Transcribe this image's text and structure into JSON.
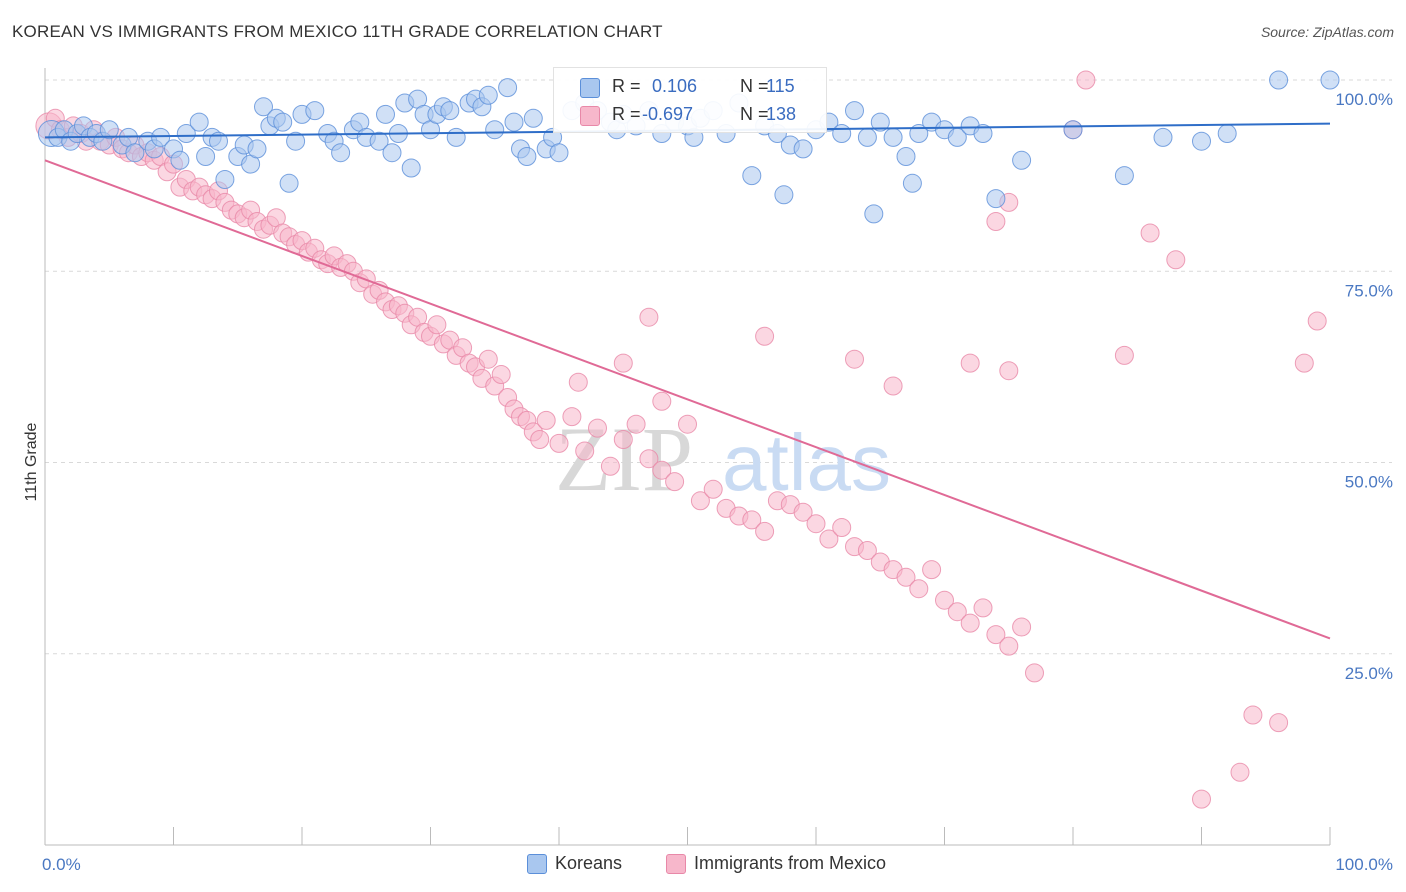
{
  "title": "KOREAN VS IMMIGRANTS FROM MEXICO 11TH GRADE CORRELATION CHART",
  "source": "Source: ZipAtlas.com",
  "watermark": {
    "zip": "ZIP",
    "atlas": "atlas"
  },
  "colors": {
    "koreans_fill": "#a9c7ef",
    "koreans_stroke": "#5b8fd9",
    "koreans_line": "#2f6ec8",
    "mexico_fill": "#f7b7cb",
    "mexico_stroke": "#e888a8",
    "mexico_line": "#e06a96",
    "tick_text": "#4a78c2",
    "grid": "#d9d9d9"
  },
  "legend_top": {
    "koreans": {
      "r_label": "R =",
      "r_value": "0.106",
      "n_label": "N =",
      "n_value": "115"
    },
    "mexico": {
      "r_label": "R =",
      "r_value": "-0.697",
      "n_label": "N =",
      "n_value": "138"
    }
  },
  "legend_bottom": {
    "koreans": "Koreans",
    "mexico": "Immigrants from Mexico"
  },
  "chart_data": {
    "type": "scatter",
    "ylabel": "11th Grade",
    "xlabel": "",
    "xlim": [
      0,
      100
    ],
    "ylim": [
      0,
      100
    ],
    "x_tick_labels": [
      "0.0%",
      "100.0%"
    ],
    "y_tick_labels": [
      "100.0%",
      "75.0%",
      "50.0%",
      "25.0%"
    ],
    "y_tick_values": [
      100,
      75,
      50,
      25
    ],
    "grid": "horizontal dashed",
    "legend": "top-center",
    "series": [
      {
        "name": "Koreans",
        "trend": {
          "x0": 0,
          "y0": 92.5,
          "x1": 100,
          "y1": 94.3
        },
        "points": [
          [
            0.5,
            93
          ],
          [
            1,
            92.5
          ],
          [
            1.5,
            93.5
          ],
          [
            2,
            92
          ],
          [
            2.5,
            93
          ],
          [
            3,
            94
          ],
          [
            3.5,
            92.5
          ],
          [
            4,
            93
          ],
          [
            4.5,
            92
          ],
          [
            5,
            93.5
          ],
          [
            6,
            91.5
          ],
          [
            6.5,
            92.5
          ],
          [
            7,
            90.5
          ],
          [
            8,
            92
          ],
          [
            8.5,
            91
          ],
          [
            9,
            92.5
          ],
          [
            10,
            91
          ],
          [
            10.5,
            89.5
          ],
          [
            11,
            93
          ],
          [
            12,
            94.5
          ],
          [
            12.5,
            90
          ],
          [
            13,
            92.5
          ],
          [
            13.5,
            92
          ],
          [
            14,
            87
          ],
          [
            15,
            90
          ],
          [
            15.5,
            91.5
          ],
          [
            16,
            89
          ],
          [
            16.5,
            91
          ],
          [
            17,
            96.5
          ],
          [
            17.5,
            94
          ],
          [
            18,
            95
          ],
          [
            18.5,
            94.5
          ],
          [
            19,
            86.5
          ],
          [
            19.5,
            92
          ],
          [
            20,
            95.5
          ],
          [
            21,
            96
          ],
          [
            22,
            93
          ],
          [
            22.5,
            92
          ],
          [
            23,
            90.5
          ],
          [
            24,
            93.5
          ],
          [
            24.5,
            94.5
          ],
          [
            25,
            92.5
          ],
          [
            26,
            92
          ],
          [
            26.5,
            95.5
          ],
          [
            27,
            90.5
          ],
          [
            27.5,
            93
          ],
          [
            28,
            97
          ],
          [
            28.5,
            88.5
          ],
          [
            29,
            97.5
          ],
          [
            29.5,
            95.5
          ],
          [
            30,
            93.5
          ],
          [
            30.5,
            95.5
          ],
          [
            31,
            96.5
          ],
          [
            31.5,
            96
          ],
          [
            32,
            92.5
          ],
          [
            33,
            97
          ],
          [
            33.5,
            97.5
          ],
          [
            34,
            96.5
          ],
          [
            34.5,
            98
          ],
          [
            35,
            93.5
          ],
          [
            36,
            99
          ],
          [
            36.5,
            94.5
          ],
          [
            37,
            91
          ],
          [
            37.5,
            90
          ],
          [
            38,
            95
          ],
          [
            39,
            91
          ],
          [
            39.5,
            92.5
          ],
          [
            40,
            90.5
          ],
          [
            41,
            96
          ],
          [
            42,
            97
          ],
          [
            43,
            96
          ],
          [
            44,
            94.5
          ],
          [
            44.5,
            93.5
          ],
          [
            45,
            95.5
          ],
          [
            46,
            94
          ],
          [
            47,
            96
          ],
          [
            48,
            93
          ],
          [
            49,
            94.5
          ],
          [
            50,
            94
          ],
          [
            50.5,
            92.5
          ],
          [
            51,
            95
          ],
          [
            52,
            96
          ],
          [
            53,
            93
          ],
          [
            54,
            97
          ],
          [
            55,
            87.5
          ],
          [
            56,
            94
          ],
          [
            57,
            93
          ],
          [
            57.5,
            85
          ],
          [
            58,
            91.5
          ],
          [
            59,
            91
          ],
          [
            60,
            93.5
          ],
          [
            61,
            94.5
          ],
          [
            62,
            93
          ],
          [
            63,
            96
          ],
          [
            64,
            92.5
          ],
          [
            64.5,
            82.5
          ],
          [
            65,
            94.5
          ],
          [
            66,
            92.5
          ],
          [
            67,
            90
          ],
          [
            67.5,
            86.5
          ],
          [
            68,
            93
          ],
          [
            69,
            94.5
          ],
          [
            70,
            93.5
          ],
          [
            71,
            92.5
          ],
          [
            72,
            94
          ],
          [
            73,
            93
          ],
          [
            74,
            84.5
          ],
          [
            76,
            89.5
          ],
          [
            80,
            93.5
          ],
          [
            84,
            87.5
          ],
          [
            87,
            92.5
          ],
          [
            90,
            92
          ],
          [
            92,
            93
          ],
          [
            96,
            100
          ],
          [
            100,
            100
          ]
        ]
      },
      {
        "name": "Immigrants from Mexico",
        "trend": {
          "x0": 0,
          "y0": 89.5,
          "x1": 100,
          "y1": 27
        },
        "points": [
          [
            0.3,
            94
          ],
          [
            0.8,
            95
          ],
          [
            1.2,
            93.5
          ],
          [
            1.8,
            92.5
          ],
          [
            2.2,
            94
          ],
          [
            2.8,
            93
          ],
          [
            3.2,
            92
          ],
          [
            3.8,
            93.5
          ],
          [
            4.3,
            92
          ],
          [
            5,
            91.5
          ],
          [
            5.5,
            92.5
          ],
          [
            6,
            91
          ],
          [
            6.5,
            90.5
          ],
          [
            7,
            91.5
          ],
          [
            7.5,
            90
          ],
          [
            8,
            90.5
          ],
          [
            8.5,
            89.5
          ],
          [
            9,
            90
          ],
          [
            9.5,
            88
          ],
          [
            10,
            89
          ],
          [
            10.5,
            86
          ],
          [
            11,
            87
          ],
          [
            11.5,
            85.5
          ],
          [
            12,
            86
          ],
          [
            12.5,
            85
          ],
          [
            13,
            84.5
          ],
          [
            13.5,
            85.5
          ],
          [
            14,
            84
          ],
          [
            14.5,
            83
          ],
          [
            15,
            82.5
          ],
          [
            15.5,
            82
          ],
          [
            16,
            83
          ],
          [
            16.5,
            81.5
          ],
          [
            17,
            80.5
          ],
          [
            17.5,
            81
          ],
          [
            18,
            82
          ],
          [
            18.5,
            80
          ],
          [
            19,
            79.5
          ],
          [
            19.5,
            78.5
          ],
          [
            20,
            79
          ],
          [
            20.5,
            77.5
          ],
          [
            21,
            78
          ],
          [
            21.5,
            76.5
          ],
          [
            22,
            76
          ],
          [
            22.5,
            77
          ],
          [
            23,
            75.5
          ],
          [
            23.5,
            76
          ],
          [
            24,
            75
          ],
          [
            24.5,
            73.5
          ],
          [
            25,
            74
          ],
          [
            25.5,
            72
          ],
          [
            26,
            72.5
          ],
          [
            26.5,
            71
          ],
          [
            27,
            70
          ],
          [
            27.5,
            70.5
          ],
          [
            28,
            69.5
          ],
          [
            28.5,
            68
          ],
          [
            29,
            69
          ],
          [
            29.5,
            67
          ],
          [
            30,
            66.5
          ],
          [
            30.5,
            68
          ],
          [
            31,
            65.5
          ],
          [
            31.5,
            66
          ],
          [
            32,
            64
          ],
          [
            32.5,
            65
          ],
          [
            33,
            63
          ],
          [
            33.5,
            62.5
          ],
          [
            34,
            61
          ],
          [
            34.5,
            63.5
          ],
          [
            35,
            60
          ],
          [
            35.5,
            61.5
          ],
          [
            36,
            58.5
          ],
          [
            36.5,
            57
          ],
          [
            37,
            56
          ],
          [
            37.5,
            55.5
          ],
          [
            38,
            54
          ],
          [
            38.5,
            53
          ],
          [
            39,
            55.5
          ],
          [
            40,
            52.5
          ],
          [
            41,
            56
          ],
          [
            42,
            51.5
          ],
          [
            43,
            54.5
          ],
          [
            44,
            49.5
          ],
          [
            45,
            53
          ],
          [
            46,
            55
          ],
          [
            47,
            50.5
          ],
          [
            48,
            49
          ],
          [
            49,
            47.5
          ],
          [
            50,
            55
          ],
          [
            51,
            45
          ],
          [
            52,
            46.5
          ],
          [
            53,
            44
          ],
          [
            54,
            43
          ],
          [
            55,
            42.5
          ],
          [
            56,
            41
          ],
          [
            57,
            45
          ],
          [
            58,
            44.5
          ],
          [
            59,
            43.5
          ],
          [
            60,
            42
          ],
          [
            61,
            40
          ],
          [
            62,
            41.5
          ],
          [
            63,
            39
          ],
          [
            64,
            38.5
          ],
          [
            65,
            37
          ],
          [
            66,
            36
          ],
          [
            67,
            35
          ],
          [
            68,
            33.5
          ],
          [
            69,
            36
          ],
          [
            70,
            32
          ],
          [
            71,
            30.5
          ],
          [
            72,
            29
          ],
          [
            73,
            31
          ],
          [
            74,
            27.5
          ],
          [
            75,
            26
          ],
          [
            76,
            28.5
          ],
          [
            77,
            22.5
          ],
          [
            41.5,
            60.5
          ],
          [
            45,
            63
          ],
          [
            47,
            69
          ],
          [
            48,
            58
          ],
          [
            56,
            66.5
          ],
          [
            63,
            63.5
          ],
          [
            66,
            60
          ],
          [
            72,
            63
          ],
          [
            75,
            62
          ],
          [
            74,
            81.5
          ],
          [
            75,
            84
          ],
          [
            80,
            93.5
          ],
          [
            81,
            100
          ],
          [
            84,
            64
          ],
          [
            86,
            80
          ],
          [
            88,
            76.5
          ],
          [
            93,
            9.5
          ],
          [
            94,
            17
          ],
          [
            96,
            16
          ],
          [
            98,
            63
          ],
          [
            99,
            68.5
          ],
          [
            90,
            6
          ]
        ]
      }
    ]
  }
}
